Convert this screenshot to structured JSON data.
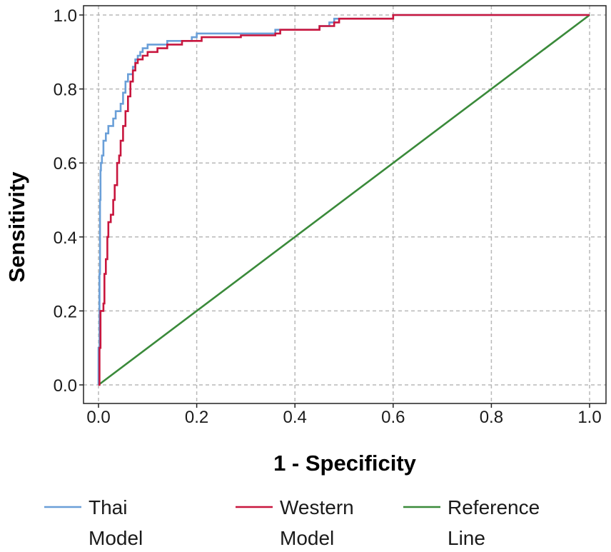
{
  "chart_data": {
    "type": "line",
    "title": "",
    "xlabel": "1 - Specificity",
    "ylabel": "Sensitivity",
    "xlim": [
      0,
      1
    ],
    "ylim": [
      0,
      1
    ],
    "xticks": [
      "0.0",
      "0.2",
      "0.4",
      "0.6",
      "0.8",
      "1.0"
    ],
    "yticks": [
      "0.0",
      "0.2",
      "0.4",
      "0.6",
      "0.8",
      "1.0"
    ],
    "grid": true,
    "legend_position": "bottom",
    "series": [
      {
        "name": "Thai Model",
        "color": "#6a9fd8",
        "step": true,
        "points": [
          [
            0,
            0
          ],
          [
            0,
            0.1
          ],
          [
            0.002,
            0.3
          ],
          [
            0.003,
            0.5
          ],
          [
            0.004,
            0.58
          ],
          [
            0.005,
            0.6
          ],
          [
            0.007,
            0.62
          ],
          [
            0.01,
            0.66
          ],
          [
            0.015,
            0.68
          ],
          [
            0.02,
            0.7
          ],
          [
            0.03,
            0.72
          ],
          [
            0.035,
            0.74
          ],
          [
            0.045,
            0.76
          ],
          [
            0.05,
            0.79
          ],
          [
            0.055,
            0.82
          ],
          [
            0.06,
            0.84
          ],
          [
            0.07,
            0.86
          ],
          [
            0.075,
            0.88
          ],
          [
            0.08,
            0.89
          ],
          [
            0.085,
            0.9
          ],
          [
            0.09,
            0.91
          ],
          [
            0.1,
            0.92
          ],
          [
            0.14,
            0.93
          ],
          [
            0.19,
            0.94
          ],
          [
            0.2,
            0.95
          ],
          [
            0.35,
            0.95
          ],
          [
            0.36,
            0.96
          ],
          [
            0.44,
            0.96
          ],
          [
            0.45,
            0.97
          ],
          [
            0.47,
            0.98
          ],
          [
            0.48,
            0.99
          ],
          [
            0.59,
            0.99
          ],
          [
            0.6,
            1.0
          ],
          [
            1.0,
            1.0
          ]
        ]
      },
      {
        "name": "Western Model",
        "color": "#c8163e",
        "step": true,
        "points": [
          [
            0,
            0
          ],
          [
            0.002,
            0.1
          ],
          [
            0.004,
            0.2
          ],
          [
            0.01,
            0.22
          ],
          [
            0.012,
            0.3
          ],
          [
            0.015,
            0.34
          ],
          [
            0.018,
            0.4
          ],
          [
            0.02,
            0.44
          ],
          [
            0.025,
            0.46
          ],
          [
            0.03,
            0.5
          ],
          [
            0.033,
            0.54
          ],
          [
            0.038,
            0.6
          ],
          [
            0.042,
            0.62
          ],
          [
            0.045,
            0.66
          ],
          [
            0.05,
            0.7
          ],
          [
            0.055,
            0.74
          ],
          [
            0.06,
            0.78
          ],
          [
            0.065,
            0.82
          ],
          [
            0.07,
            0.85
          ],
          [
            0.075,
            0.87
          ],
          [
            0.08,
            0.88
          ],
          [
            0.09,
            0.89
          ],
          [
            0.1,
            0.9
          ],
          [
            0.12,
            0.91
          ],
          [
            0.14,
            0.92
          ],
          [
            0.17,
            0.93
          ],
          [
            0.21,
            0.94
          ],
          [
            0.29,
            0.945
          ],
          [
            0.36,
            0.95
          ],
          [
            0.37,
            0.96
          ],
          [
            0.45,
            0.97
          ],
          [
            0.48,
            0.98
          ],
          [
            0.49,
            0.99
          ],
          [
            0.6,
            1.0
          ],
          [
            1.0,
            1.0
          ]
        ]
      },
      {
        "name": "Reference Line",
        "color": "#3a8a3a",
        "step": false,
        "points": [
          [
            0,
            0
          ],
          [
            1,
            1
          ]
        ]
      }
    ]
  },
  "legend": [
    {
      "line1": "Thai",
      "line2": "Model",
      "color": "#6a9fd8"
    },
    {
      "line1": "Western",
      "line2": "Model",
      "color": "#c8163e"
    },
    {
      "line1": "Reference",
      "line2": "Line",
      "color": "#3a8a3a"
    }
  ]
}
